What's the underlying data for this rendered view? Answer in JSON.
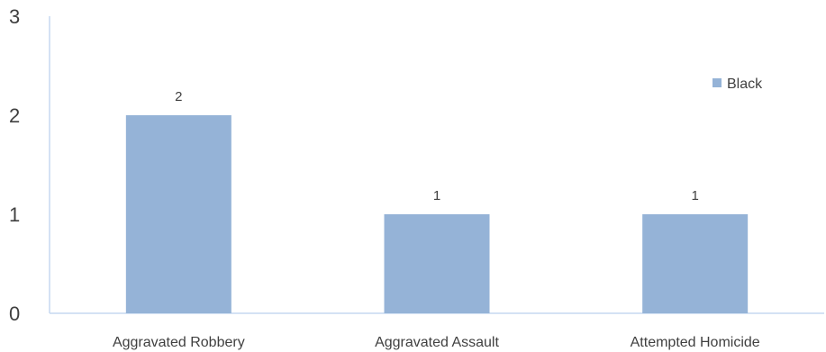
{
  "chart_data": {
    "type": "bar",
    "categories": [
      "Aggravated Robbery",
      "Aggravated Assault",
      "Attempted Homicide"
    ],
    "series": [
      {
        "name": "Black",
        "values": [
          2,
          1,
          1
        ],
        "color": "#95b3d7"
      }
    ],
    "y_ticks": [
      0,
      1,
      2,
      3
    ],
    "ylim": [
      0,
      3
    ],
    "grid": false,
    "legend_position": "right",
    "data_labels": true,
    "axis_color": "#c6d9f1"
  }
}
